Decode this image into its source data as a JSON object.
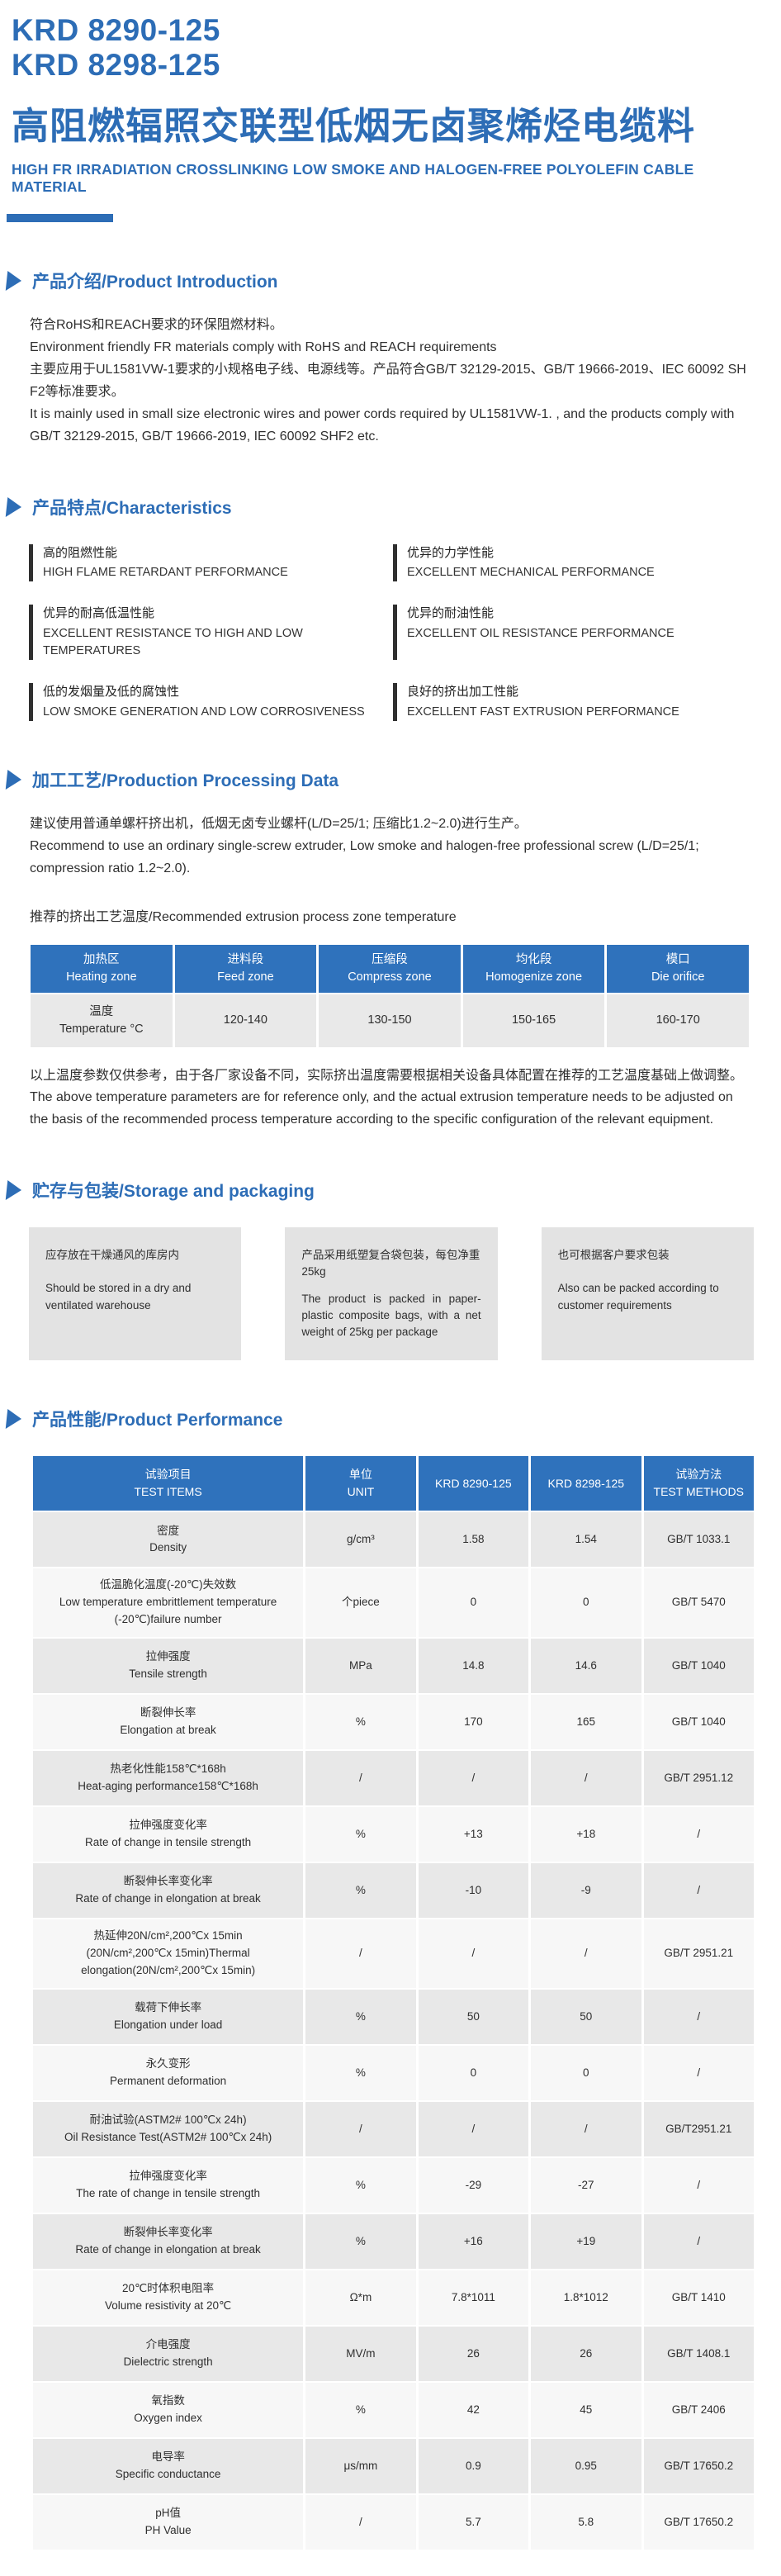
{
  "colors": {
    "accent": "#2d6db6",
    "table_header_bg": "#2f72bc",
    "row_gray": "#e8e8e8",
    "row_light": "#f7f7f7",
    "box_bg": "#e3e3e3",
    "feature_bar": "#2f2f2f"
  },
  "header": {
    "code1": "KRD 8290-125",
    "code2": "KRD 8298-125",
    "title_zh": "高阻燃辐照交联型低烟无卤聚烯烃电缆料",
    "title_en": "HIGH FR IRRADIATION CROSSLINKING LOW SMOKE AND HALOGEN-FREE POLYOLEFIN CABLE MATERIAL"
  },
  "sections": {
    "introduction": {
      "heading": "产品介绍/Product Introduction",
      "paragraphs": [
        "符合RoHS和REACH要求的环保阻燃材料。",
        "Environment friendly FR materials comply with RoHS and REACH requirements",
        "主要应用于UL1581VW-1要求的小规格电子线、电源线等。产品符合GB/T 32129-2015、GB/T 19666-2019、IEC 60092 SH F2等标准要求。",
        "It is mainly used in small size electronic wires and power cords required by UL1581VW-1. , and the products comply with GB/T 32129-2015, GB/T 19666-2019, IEC 60092 SHF2 etc."
      ]
    },
    "characteristics": {
      "heading": "产品特点/Characteristics",
      "items": [
        {
          "zh": "高的阻燃性能",
          "en": "HIGH FLAME RETARDANT PERFORMANCE"
        },
        {
          "zh": "优异的力学性能",
          "en": "EXCELLENT MECHANICAL PERFORMANCE"
        },
        {
          "zh": "优异的耐高低温性能",
          "en": "EXCELLENT RESISTANCE TO HIGH AND LOW TEMPERATURES"
        },
        {
          "zh": "优异的耐油性能",
          "en": "EXCELLENT OIL RESISTANCE PERFORMANCE"
        },
        {
          "zh": "低的发烟量及低的腐蚀性",
          "en": "LOW SMOKE GENERATION AND LOW CORROSIVENESS"
        },
        {
          "zh": "良好的挤出加工性能",
          "en": "EXCELLENT FAST EXTRUSION PERFORMANCE"
        }
      ]
    },
    "processing": {
      "heading": "加工工艺/Production Processing Data",
      "paragraphs": [
        "建议使用普通单螺杆挤出机，低烟无卤专业螺杆(L/D=25/1; 压缩比1.2~2.0)进行生产。",
        "Recommend to use an ordinary single-screw extruder, Low smoke and halogen-free professional screw (L/D=25/1; compression ratio 1.2~2.0)."
      ],
      "subheading": "推荐的挤出工艺温度/Recommended extrusion process zone temperature",
      "table": {
        "headers": [
          {
            "zh": "加热区",
            "en": "Heating zone"
          },
          {
            "zh": "进料段",
            "en": "Feed zone"
          },
          {
            "zh": "压缩段",
            "en": "Compress zone"
          },
          {
            "zh": "均化段",
            "en": "Homogenize zone"
          },
          {
            "zh": "模口",
            "en": "Die orifice"
          }
        ],
        "row_label": {
          "zh": "温度",
          "en": "Temperature °C"
        },
        "values": [
          "120-140",
          "130-150",
          "150-165",
          "160-170"
        ]
      },
      "note": [
        "以上温度参数仅供参考，由于各厂家设备不同，实际挤出温度需要根据相关设备具体配置在推荐的工艺温度基础上做调整。",
        "The above temperature parameters are for reference only, and the actual extrusion temperature needs to be adjusted on the basis of the recommended process temperature according to the specific configuration of the relevant equipment."
      ]
    },
    "storage": {
      "heading": "贮存与包装/Storage and packaging",
      "boxes": [
        {
          "zh": "应存放在干燥通风的库房内",
          "en": "Should be stored in a dry and ventilated warehouse"
        },
        {
          "zh": "产品采用纸塑复合袋包装，每包净重25kg",
          "en": "The product is packed in paper-plastic composite bags, with a net weight of 25kg per package"
        },
        {
          "zh": "也可根据客户要求包装",
          "en": "Also can be packed according to customer requirements"
        }
      ]
    },
    "performance": {
      "heading": "产品性能/Product Performance",
      "table": {
        "headers": [
          {
            "zh": "试验项目",
            "en": "TEST ITEMS"
          },
          {
            "zh": "单位",
            "en": "UNIT"
          },
          {
            "zh": "KRD 8290-125",
            "en": ""
          },
          {
            "zh": "KRD 8298-125",
            "en": ""
          },
          {
            "zh": "试验方法",
            "en": "TEST METHODS"
          }
        ],
        "rows": [
          {
            "item_zh": "密度",
            "item_en": "Density",
            "unit": "g/cm³",
            "krd8290": "1.58",
            "krd8298": "1.54",
            "method": "GB/T 1033.1"
          },
          {
            "item_zh": "低温脆化温度(-20℃)失效数",
            "item_en": "Low temperature embrittlement temperature (-20℃)failure number",
            "unit": "个piece",
            "krd8290": "0",
            "krd8298": "0",
            "method": "GB/T 5470"
          },
          {
            "item_zh": "拉伸强度",
            "item_en": "Tensile strength",
            "unit": "MPa",
            "krd8290": "14.8",
            "krd8298": "14.6",
            "method": "GB/T 1040"
          },
          {
            "item_zh": "断裂伸长率",
            "item_en": "Elongation at break",
            "unit": "%",
            "krd8290": "170",
            "krd8298": "165",
            "method": "GB/T 1040"
          },
          {
            "item_zh": "热老化性能158℃*168h",
            "item_en": "Heat-aging performance158℃*168h",
            "unit": "/",
            "krd8290": "/",
            "krd8298": "/",
            "method": "GB/T 2951.12"
          },
          {
            "item_zh": "拉伸强度变化率",
            "item_en": "Rate of change in tensile strength",
            "unit": "%",
            "krd8290": "+13",
            "krd8298": "+18",
            "method": "/"
          },
          {
            "item_zh": "断裂伸长率变化率",
            "item_en": "Rate of change in elongation at break",
            "unit": "%",
            "krd8290": "-10",
            "krd8298": "-9",
            "method": "/"
          },
          {
            "item_zh": "热延伸20N/cm²,200℃x 15min",
            "item_en": "(20N/cm²,200℃x 15min)Thermal elongation(20N/cm²,200℃x 15min)",
            "unit": "/",
            "krd8290": "/",
            "krd8298": "/",
            "method": "GB/T 2951.21"
          },
          {
            "item_zh": "载荷下伸长率",
            "item_en": "Elongation under load",
            "unit": "%",
            "krd8290": "50",
            "krd8298": "50",
            "method": "/"
          },
          {
            "item_zh": "永久变形",
            "item_en": "Permanent deformation",
            "unit": "%",
            "krd8290": "0",
            "krd8298": "0",
            "method": "/"
          },
          {
            "item_zh": "耐油试验(ASTM2# 100℃x 24h)",
            "item_en": "Oil Resistance Test(ASTM2# 100℃x 24h)",
            "unit": "/",
            "krd8290": "/",
            "krd8298": "/",
            "method": "GB/T2951.21"
          },
          {
            "item_zh": "拉伸强度变化率",
            "item_en": "The rate of change in tensile strength",
            "unit": "%",
            "krd8290": "-29",
            "krd8298": "-27",
            "method": "/"
          },
          {
            "item_zh": "断裂伸长率变化率",
            "item_en": "Rate of change in elongation at break",
            "unit": "%",
            "krd8290": "+16",
            "krd8298": "+19",
            "method": "/"
          },
          {
            "item_zh": "20℃时体积电阻率",
            "item_en": "Volume resistivity at 20℃",
            "unit": "Ω*m",
            "krd8290": "7.8*1011",
            "krd8298": "1.8*1012",
            "method": "GB/T 1410"
          },
          {
            "item_zh": "介电强度",
            "item_en": "Dielectric strength",
            "unit": "MV/m",
            "krd8290": "26",
            "krd8298": "26",
            "method": "GB/T 1408.1"
          },
          {
            "item_zh": "氧指数",
            "item_en": "Oxygen index",
            "unit": "%",
            "krd8290": "42",
            "krd8298": "45",
            "method": "GB/T 2406"
          },
          {
            "item_zh": "电导率",
            "item_en": "Specific conductance",
            "unit": "μs/mm",
            "krd8290": "0.9",
            "krd8298": "0.95",
            "method": "GB/T 17650.2"
          },
          {
            "item_zh": "pH值",
            "item_en": "PH Value",
            "unit": "/",
            "krd8290": "5.7",
            "krd8298": "5.8",
            "method": "GB/T 17650.2"
          }
        ]
      }
    }
  }
}
